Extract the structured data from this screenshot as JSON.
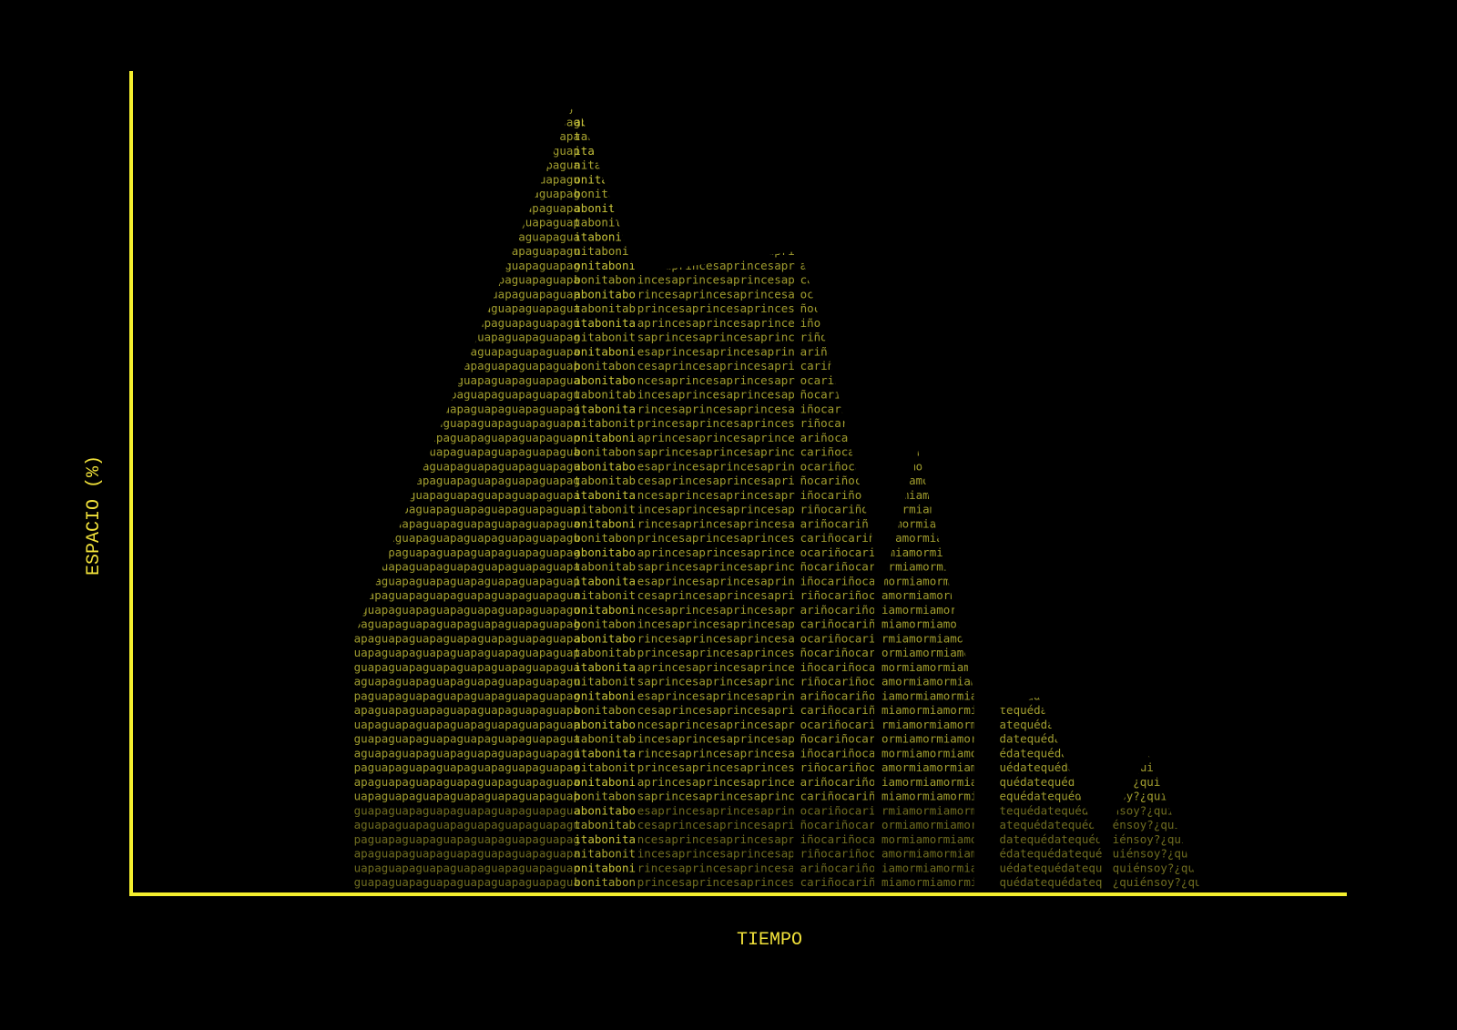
{
  "chart_data": {
    "type": "area",
    "title": "",
    "xlabel": "TIEMPO",
    "ylabel": "ESPACIO (%)",
    "xlim": [
      0,
      100
    ],
    "ylim": [
      0,
      100
    ],
    "grid": false,
    "legend": "none",
    "colors": {
      "background": "#000000",
      "axis": "#f5ef2e",
      "text_fill": "#c9c43a",
      "label": "#f2e23a"
    },
    "series": [
      {
        "bands": [
          {
            "word": "guapa",
            "x": [
              18.4,
              36.5
            ]
          },
          {
            "word": "bonita",
            "x": [
              36.5,
              41.6
            ]
          }
        ],
        "outline": [
          [
            18.4,
            0
          ],
          [
            18.4,
            31.2
          ],
          [
            36.3,
            95.4
          ],
          [
            37.2,
            94.2
          ],
          [
            41.6,
            75.4
          ],
          [
            41.6,
            0
          ]
        ]
      },
      {
        "bands": [
          {
            "word": "princesa",
            "x": [
              41.7,
              54.6
            ]
          }
        ],
        "outline": [
          [
            41.7,
            0
          ],
          [
            41.7,
            75.4
          ],
          [
            55.2,
            78.2
          ],
          [
            54.5,
            0
          ]
        ]
      },
      {
        "bands": [
          {
            "word": "cariño",
            "x": [
              55.1,
              61.2
            ]
          }
        ],
        "outline": [
          [
            55.1,
            0
          ],
          [
            55.1,
            78.2
          ],
          [
            57.1,
            67.7
          ],
          [
            61.2,
            42.3
          ],
          [
            61.2,
            0
          ]
        ]
      },
      {
        "bands": [
          {
            "word": "mi amor",
            "x": [
              61.8,
              69.4
            ]
          }
        ],
        "outline": [
          [
            61.8,
            0
          ],
          [
            61.8,
            36.7
          ],
          [
            64.8,
            53.9
          ],
          [
            69.4,
            24.6
          ],
          [
            69.4,
            0
          ]
        ]
      },
      {
        "bands": [
          {
            "word": "quédate",
            "x": [
              71.5,
              79.9
            ]
          }
        ],
        "outline": [
          [
            71.5,
            0
          ],
          [
            71.5,
            22.6
          ],
          [
            74.7,
            24.0
          ],
          [
            79.9,
            5.8
          ],
          [
            79.9,
            0
          ]
        ]
      },
      {
        "bands": [
          {
            "word": "¿quién soy?",
            "x": [
              80.8,
              88.0
            ]
          }
        ],
        "outline": [
          [
            80.8,
            0
          ],
          [
            80.8,
            9.1
          ],
          [
            83.8,
            16.8
          ],
          [
            88.0,
            0.8
          ],
          [
            88.0,
            0
          ]
        ]
      }
    ]
  }
}
